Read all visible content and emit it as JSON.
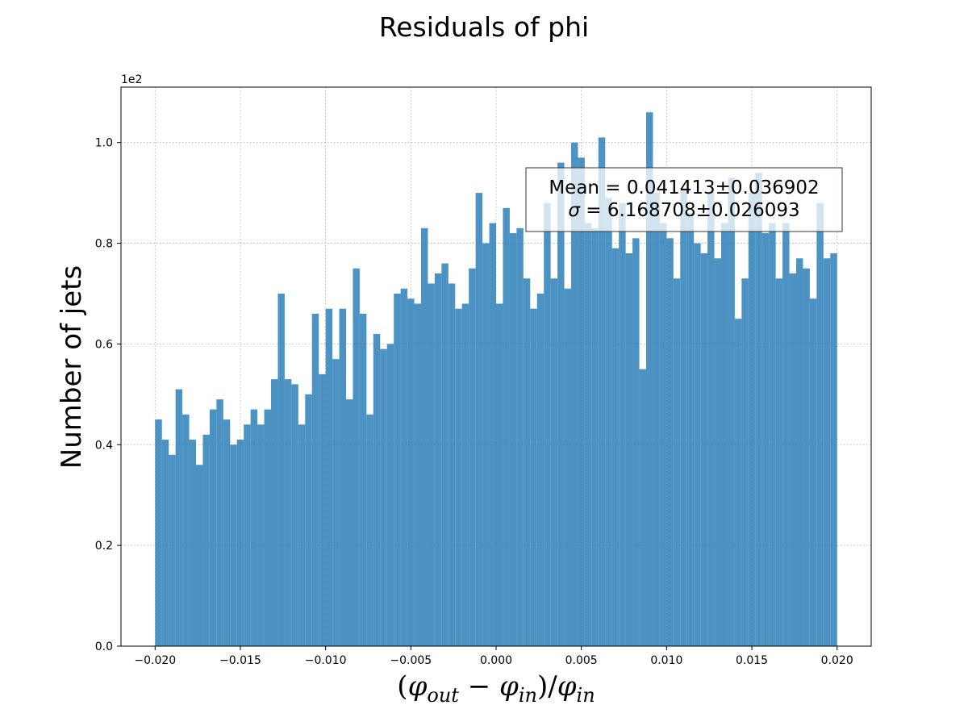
{
  "chart_data": {
    "type": "bar",
    "title": "Residuals of phi",
    "ylabel": "Number of jets",
    "xlabel": "(φout − φin)/φin",
    "xlabel_parts": {
      "open": "(",
      "phi1": "φ",
      "sub1": "out",
      "minus": " − ",
      "phi2": "φ",
      "sub2": "in",
      "close": ")/",
      "phi3": "φ",
      "sub3": "in"
    },
    "y_offset_text": "1e2",
    "y_multiplier": 100,
    "xlim": [
      -0.022,
      0.022
    ],
    "ylim": [
      0,
      111
    ],
    "grid": true,
    "bar_color": "#1f77b4",
    "bar_alpha": 0.8,
    "bin_start": -0.02,
    "bin_width": 0.0004,
    "x_ticks": [
      -0.02,
      -0.015,
      -0.01,
      -0.005,
      0.0,
      0.005,
      0.01,
      0.015,
      0.02
    ],
    "x_tick_labels": [
      "−0.020",
      "−0.015",
      "−0.010",
      "−0.005",
      "0.000",
      "0.005",
      "0.010",
      "0.015",
      "0.020"
    ],
    "y_ticks": [
      0,
      20,
      40,
      60,
      80,
      100
    ],
    "y_tick_labels": [
      "0.0",
      "0.2",
      "0.4",
      "0.6",
      "0.8",
      "1.0"
    ],
    "values": [
      45,
      41,
      38,
      51,
      46,
      41,
      36,
      42,
      47,
      49,
      45,
      40,
      41,
      44,
      47,
      44,
      47,
      53,
      70,
      53,
      52,
      44,
      50,
      66,
      54,
      67,
      57,
      67,
      49,
      75,
      66,
      46,
      62,
      59,
      60,
      70,
      71,
      69,
      68,
      83,
      72,
      74,
      76,
      72,
      67,
      68,
      75,
      90,
      80,
      84,
      68,
      87,
      82,
      83,
      73,
      67,
      70,
      88,
      73,
      96,
      71,
      100,
      97,
      84,
      83,
      101,
      89,
      79,
      88,
      78,
      81,
      55,
      106,
      90,
      84,
      81,
      73,
      91,
      86,
      80,
      78,
      90,
      77,
      84,
      93,
      65,
      73,
      90,
      94,
      82,
      84,
      73,
      84,
      74,
      77,
      75,
      69,
      88,
      77,
      78,
      0
    ],
    "annotation": {
      "line1": "Mean = 0.041413±0.036902",
      "line2_sym": "σ",
      "line2_rest": " = 6.168708±0.026093"
    }
  }
}
